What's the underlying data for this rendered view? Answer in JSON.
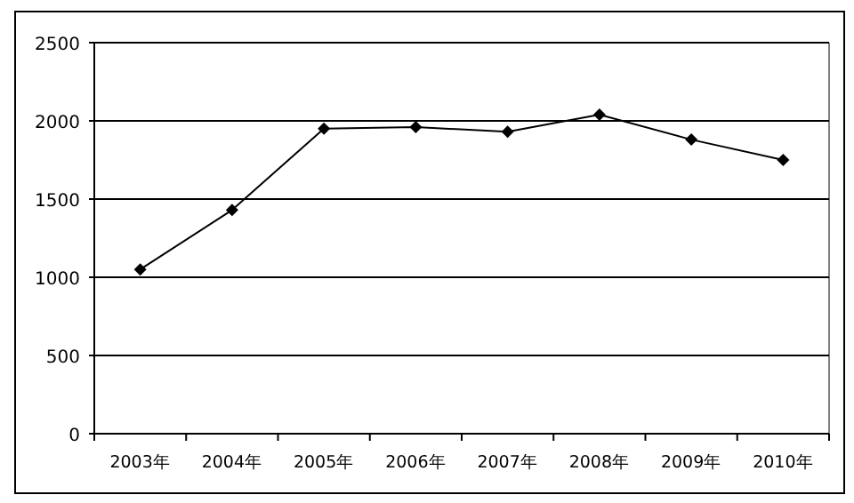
{
  "chart_data": {
    "type": "line",
    "categories": [
      "2003年",
      "2004年",
      "2005年",
      "2006年",
      "2007年",
      "2008年",
      "2009年",
      "2010年"
    ],
    "values": [
      1050,
      1430,
      1950,
      1960,
      1930,
      2040,
      1880,
      1750
    ],
    "color": "#000000",
    "marker": "diamond",
    "line_style": "solid",
    "ylim": [
      0,
      2500
    ],
    "yticks": [
      0,
      500,
      1000,
      1500,
      2000,
      2500
    ],
    "grid": "y",
    "legend": false
  }
}
